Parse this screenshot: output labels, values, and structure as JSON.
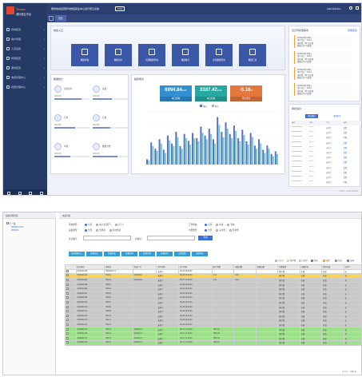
{
  "app": {
    "logo_brand": "Tector",
    "logo_name": "测针费云平台",
    "header_title": "服务热线运营呼叫排班就业中心运行费云系统",
    "header_badge": "V3.0",
    "header_user": "Administrator",
    "header_tab_active": "首页",
    "footer_copyright": "© 2015 - 2019 Technet"
  },
  "sidebar": {
    "items": [
      {
        "label": "机构配置",
        "icon": "home-icon"
      },
      {
        "label": "用户管理",
        "icon": "user-icon"
      },
      {
        "label": "人员设置",
        "icon": "people-icon"
      },
      {
        "label": "机场配置",
        "icon": "plane-icon"
      },
      {
        "label": "服务配置",
        "icon": "cog-icon"
      },
      {
        "label": "收费管理中心",
        "icon": "money-icon"
      },
      {
        "label": "机型管理中心",
        "icon": "grid-icon"
      }
    ]
  },
  "quick": {
    "title": "快捷入口",
    "buttons": [
      {
        "label": "数据查询",
        "icon": "search-icon"
      },
      {
        "label": "数据用户",
        "icon": "user-icon"
      },
      {
        "label": "机场数据查询",
        "icon": "list-icon"
      },
      {
        "label": "数据统计",
        "icon": "chart-icon"
      },
      {
        "label": "业务数据查询",
        "icon": "folder-icon"
      },
      {
        "label": "数据汇总",
        "icon": "copy-icon"
      }
    ]
  },
  "todo": {
    "title": "近日待处理事项",
    "more": "查看更多",
    "items": [
      {
        "date": "2019年06月28日",
        "l1": "用户总计：100人",
        "l2": "待处理：80 已处理",
        "l3": "数据正常 待处理"
      },
      {
        "date": "2019年06月28日",
        "l1": "用户总计：100人",
        "l2": "待处理：80 已处理",
        "l3": "数据正常 待处理"
      },
      {
        "date": "2019年06月28日",
        "l1": "用户总计：100人",
        "l2": "待处理：80 已处理",
        "l3": "数据正常 待处理"
      },
      {
        "date": "2019年06月28日",
        "l1": "用户总计：100人",
        "l2": "待处理：80 已处理",
        "l3": "数据正常 待处理"
      }
    ]
  },
  "stats": {
    "title": "数据统计",
    "items": [
      {
        "name": "实际用户",
        "value": "100/100",
        "pct": 0.78
      },
      {
        "name": "总量",
        "value": "100/100",
        "pct": 0.55
      },
      {
        "name": "分类",
        "value": "100/100",
        "pct": 0.6
      },
      {
        "name": "分量",
        "value": "100/100",
        "pct": 0.5
      },
      {
        "name": "单量",
        "value": "100/100",
        "pct": 0.45
      },
      {
        "name": "数据分类",
        "value": "100/100",
        "pct": 0.7
      }
    ]
  },
  "trend": {
    "title": "趋势概览",
    "kpis": [
      {
        "value": "6994.84",
        "unit": "kWh",
        "label": "本日用电",
        "color": "#2f8fd0"
      },
      {
        "value": "3187.42",
        "unit": "kWh",
        "label": "本日用电",
        "color": "#27a8a0"
      },
      {
        "value": "-5.16",
        "unit": "%",
        "label": "环比增长",
        "color": "#e3773c"
      }
    ],
    "legend": [
      "本日",
      "昨日"
    ]
  },
  "chart_data": {
    "type": "bar",
    "series": [
      {
        "name": "本日",
        "values": [
          10,
          42,
          30,
          48,
          28,
          55,
          40,
          62,
          35,
          58,
          45,
          60,
          50,
          72,
          55,
          68,
          48,
          90,
          62,
          80,
          58,
          74,
          50,
          66,
          44,
          60,
          36,
          48,
          28,
          36,
          20,
          25
        ]
      },
      {
        "name": "昨日",
        "values": [
          8,
          35,
          26,
          40,
          22,
          46,
          35,
          52,
          30,
          50,
          38,
          50,
          44,
          60,
          48,
          58,
          40,
          75,
          52,
          68,
          50,
          64,
          44,
          56,
          38,
          52,
          30,
          40,
          22,
          30,
          16,
          20
        ]
      }
    ],
    "ylim": [
      0,
      100
    ]
  },
  "records": {
    "title": "审批消息",
    "tab_active": "审批通知",
    "tab2": "查看更多",
    "headers": [
      "编号",
      "时间",
      "户号",
      "操作"
    ],
    "rows": [
      [
        "0190026004",
        "03717",
        "未用户",
        "查看"
      ],
      [
        "0190026005",
        "03717",
        "未用户",
        "查看"
      ],
      [
        "0190026006",
        "03717",
        "未用户",
        "查看"
      ],
      [
        "0190026007",
        "03717",
        "未用户",
        "查看"
      ],
      [
        "0190026008",
        "03717",
        "未用户",
        "查看"
      ],
      [
        "0190026009",
        "03717",
        "未用户",
        "查看"
      ],
      [
        "0190026010",
        "03717",
        "未用户",
        "查看"
      ],
      [
        "0190026011",
        "03717",
        "未用户",
        "查看"
      ],
      [
        "0190026012",
        "03717",
        "未用户",
        "查看"
      ],
      [
        "0190026013",
        "03717",
        "未用户",
        "查看"
      ],
      [
        "0190026014",
        "03717",
        "未用户",
        "查看"
      ],
      [
        "0190026015",
        "03717",
        "未用户",
        "查看"
      ]
    ]
  },
  "bottom": {
    "tree_title": "组织机构列表",
    "tree_root": "七一站",
    "tree_children": [
      "0050502-1516",
      "0050505"
    ],
    "page_title": "电表列表",
    "filters": [
      {
        "label": "查询类型：",
        "options": [
          "全部",
          "电子表(国产)",
          "大于0"
        ],
        "selected": 0
      },
      {
        "label": "工作状态：",
        "options": [
          "全部",
          "在线",
          "离线"
        ],
        "selected": 0
      },
      {
        "label": "设备类型：",
        "options": [
          "全部",
          "普通表",
          "预付费表"
        ],
        "selected": 0
      },
      {
        "label": "付费类型：",
        "options": [
          "全部",
          "后付费",
          "预付费"
        ],
        "selected": 0
      }
    ],
    "input1_label": "表计编号：",
    "input2_label": "表地址：",
    "search_button": "查询",
    "actions": [
      "电表批量导入",
      "批量导出",
      "批量抄表",
      "批量拉闸",
      "批量合闸",
      "批量校时",
      "设置参数",
      "更新电价"
    ],
    "legend": [
      {
        "label": "已开户",
        "color": "#9fd18c"
      },
      {
        "label": "预付费",
        "color": "#f7d35a"
      },
      {
        "label": "已销户",
        "color": "#c9c9c9"
      },
      {
        "label": "离线",
        "color": "#e6554a"
      },
      {
        "label": "报警",
        "color": "#f0a040"
      },
      {
        "label": "在线",
        "color": "#4fb3e0"
      },
      {
        "label": "拉闸",
        "color": "#a06bd1"
      }
    ],
    "headers": [
      "",
      "表计编号",
      "表地址",
      "电表户号",
      "用户名称",
      "开户时间",
      "账户余额",
      "电量总数",
      "电量总额",
      "付费类型",
      "在线状态",
      "是否有效",
      "已开户"
    ],
    "rows": [
      [
        "0",
        "0000000162",
        "0004000.5.1",
        "",
        "未用户",
        "05-28 23:29:00",
        "",
        "",
        "",
        "预付费",
        "在线",
        "有效",
        "无"
      ],
      [
        "0",
        "0000000163",
        "TB161",
        "00000161",
        "未用户",
        "05-28 23:29:00",
        "0.00",
        "0.00",
        "",
        "预付费",
        "在线",
        "有效",
        "有"
      ],
      [
        "0",
        "0000000164",
        "TB162",
        "00000162",
        "未用户",
        "05-07 17:49:00",
        "0.00",
        "0.00",
        "",
        "预付费",
        "在线",
        "有效",
        "有"
      ],
      [
        "0",
        "0000000165",
        "TB163",
        "",
        "未用户",
        "05-28 23:29:00",
        "",
        "",
        "",
        "预付费",
        "在线",
        "有效",
        "无"
      ],
      [
        "0",
        "0000000166",
        "TB164",
        "",
        "未用户",
        "05-28 23:29:00",
        "",
        "",
        "",
        "预付费",
        "在线",
        "有效",
        "无"
      ],
      [
        "0",
        "0000000167",
        "TB165",
        "",
        "未用户",
        "05-28 23:29:00",
        "",
        "",
        "",
        "预付费",
        "在线",
        "有效",
        "无"
      ],
      [
        "0",
        "0000000168",
        "TB166",
        "",
        "未用户",
        "05-28 23:29:00",
        "",
        "",
        "",
        "预付费",
        "在线",
        "有效",
        "无"
      ],
      [
        "0",
        "0000000169",
        "TB167",
        "",
        "未用户",
        "05-28 23:29:00",
        "",
        "",
        "",
        "预付费",
        "在线",
        "有效",
        "无"
      ],
      [
        "0",
        "0000000170",
        "TB168",
        "",
        "未用户",
        "05-28 23:29:00",
        "",
        "",
        "",
        "预付费",
        "在线",
        "有效",
        "无"
      ],
      [
        "0",
        "0000000171",
        "TB169",
        "",
        "未用户",
        "05-28 23:29:00",
        "",
        "",
        "",
        "预付费",
        "在线",
        "有效",
        "无"
      ],
      [
        "0",
        "0000000172",
        "TB170",
        "",
        "未用户",
        "05-28 23:29:00",
        "",
        "",
        "",
        "预付费",
        "在线",
        "有效",
        "无"
      ],
      [
        "0",
        "0000000173",
        "TB171",
        "",
        "未用户",
        "05-28 23:29:00",
        "",
        "",
        "",
        "预付费",
        "在线",
        "有效",
        "无"
      ],
      [
        "0",
        "0000000174",
        "TB172",
        "",
        "未用户",
        "05-28 23:29:00",
        "",
        "",
        "",
        "预付费",
        "在线",
        "有效",
        "无"
      ],
      [
        "0",
        "0000000175",
        "TB173",
        "00000173",
        "未用户",
        "05-07 17:49:00",
        "7556.00",
        "",
        "",
        "预付费",
        "在线",
        "有效",
        "有"
      ],
      [
        "0",
        "0000000176",
        "TB174",
        "00000174",
        "未用户",
        "05-07 17:49:00",
        "7556.00",
        "",
        "",
        "预付费",
        "在线",
        "有效",
        "有"
      ],
      [
        "0",
        "0000000177",
        "TB175",
        "00000175",
        "未用户",
        "05-07 17:49:00",
        "7556.00",
        "",
        "",
        "预付费",
        "在线",
        "有效",
        "有"
      ],
      [
        "0",
        "0000000178",
        "TB176",
        "00000176",
        "未用户",
        "05-07 17:49:00",
        "7556.00",
        "",
        "",
        "预付费",
        "在线",
        "有效",
        "有"
      ]
    ],
    "row_colors": [
      "#ffffff",
      "#f7d35a",
      "#c9c9c9",
      "#c9c9c9",
      "#c9c9c9",
      "#c9c9c9",
      "#c9c9c9",
      "#c9c9c9",
      "#c9c9c9",
      "#c9c9c9",
      "#c9c9c9",
      "#c9c9c9",
      "#c9c9c9",
      "#9fe08c",
      "#9fe08c",
      "#9fe08c",
      "#9fe08c"
    ],
    "footer": "共 1/17 · 20条/页"
  }
}
